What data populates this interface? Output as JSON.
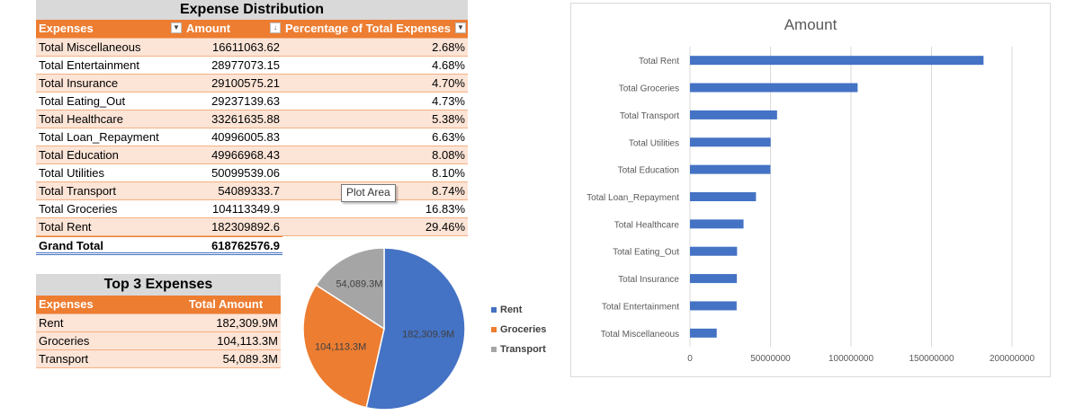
{
  "distribution": {
    "title": "Expense Distribution",
    "headers": [
      "Expenses",
      "Amount",
      "Percentage of Total Expenses"
    ],
    "rows": [
      {
        "name": "Total Miscellaneous",
        "amount": "16611063.62",
        "pct": "2.68%"
      },
      {
        "name": "Total Entertainment",
        "amount": "28977073.15",
        "pct": "4.68%"
      },
      {
        "name": "Total Insurance",
        "amount": "29100575.21",
        "pct": "4.70%"
      },
      {
        "name": "Total Eating_Out",
        "amount": "29237139.63",
        "pct": "4.73%"
      },
      {
        "name": "Total Healthcare",
        "amount": "33261635.88",
        "pct": "5.38%"
      },
      {
        "name": "Total Loan_Repayment",
        "amount": "40996005.83",
        "pct": "6.63%"
      },
      {
        "name": "Total Education",
        "amount": "49966968.43",
        "pct": "8.08%"
      },
      {
        "name": "Total Utilities",
        "amount": "50099539.06",
        "pct": "8.10%"
      },
      {
        "name": "Total Transport",
        "amount": "54089333.7",
        "pct": "8.74%"
      },
      {
        "name": "Total Groceries",
        "amount": "104113349.9",
        "pct": "16.83%"
      },
      {
        "name": "Total Rent",
        "amount": "182309892.6",
        "pct": "29.46%"
      }
    ],
    "grand_total_label": "Grand Total",
    "grand_total_value": "618762576.9"
  },
  "tooltip": "Plot Area",
  "top3": {
    "title": "Top 3 Expenses",
    "headers": [
      "Expenses",
      "Total Amount"
    ],
    "rows": [
      {
        "name": "Rent",
        "amount": "182,309.9M"
      },
      {
        "name": "Groceries",
        "amount": "104,113.3M"
      },
      {
        "name": "Transport",
        "amount": "54,089.3M"
      }
    ]
  },
  "colors": {
    "header_orange": "#ed7d31",
    "row_peach": "#fce4d6",
    "blue": "#4472c4",
    "gray": "#a5a5a5"
  },
  "chart_data": [
    {
      "type": "pie",
      "title": "",
      "categories": [
        "Rent",
        "Groceries",
        "Transport"
      ],
      "values": [
        182309.9,
        104113.3,
        54089.3
      ],
      "data_labels": [
        "182,309.9M",
        "104,113.3M",
        "54,089.3M"
      ],
      "colors": [
        "#4472c4",
        "#ed7d31",
        "#a5a5a5"
      ],
      "legend": "right"
    },
    {
      "type": "bar",
      "orientation": "horizontal",
      "title": "Amount",
      "categories": [
        "Total Rent",
        "Total Groceries",
        "Total Transport",
        "Total Utilities",
        "Total Education",
        "Total Loan_Repayment",
        "Total Healthcare",
        "Total Eating_Out",
        "Total Insurance",
        "Total Entertainment",
        "Total Miscellaneous"
      ],
      "values": [
        182309892.6,
        104113349.9,
        54089333.7,
        50099539.06,
        49966968.43,
        40996005.83,
        33261635.88,
        29237139.63,
        29100575.21,
        28977073.15,
        16611063.62
      ],
      "xlim": [
        0,
        200000000
      ],
      "xticks": [
        "0",
        "50000000",
        "100000000",
        "150000000",
        "200000000"
      ],
      "grid": true,
      "color": "#4472c4"
    }
  ]
}
